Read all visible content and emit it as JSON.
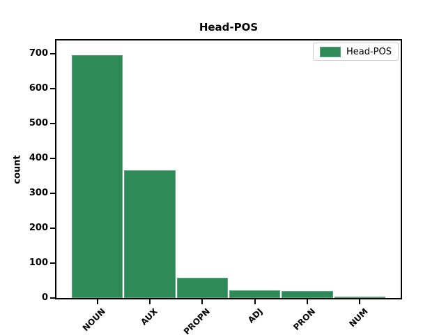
{
  "chart_data": {
    "type": "bar",
    "title": "Head-POS",
    "xlabel": "",
    "ylabel": "count",
    "categories": [
      "NOUN",
      "AUX",
      "PROPN",
      "ADJ",
      "PRON",
      "NUM"
    ],
    "values": [
      697,
      367,
      59,
      23,
      20,
      4
    ],
    "yticks": [
      0,
      100,
      200,
      300,
      400,
      500,
      600,
      700
    ],
    "ylim": [
      0,
      738
    ],
    "grid": false,
    "legend": {
      "label": "Head-POS",
      "position": "upper-right"
    },
    "colors": {
      "bar_fill": "#2e8b57",
      "bar_edge": "#5aa57d",
      "spine": "#000000",
      "legend_border": "#cccccc",
      "background": "#ffffff",
      "text": "#000000"
    }
  }
}
